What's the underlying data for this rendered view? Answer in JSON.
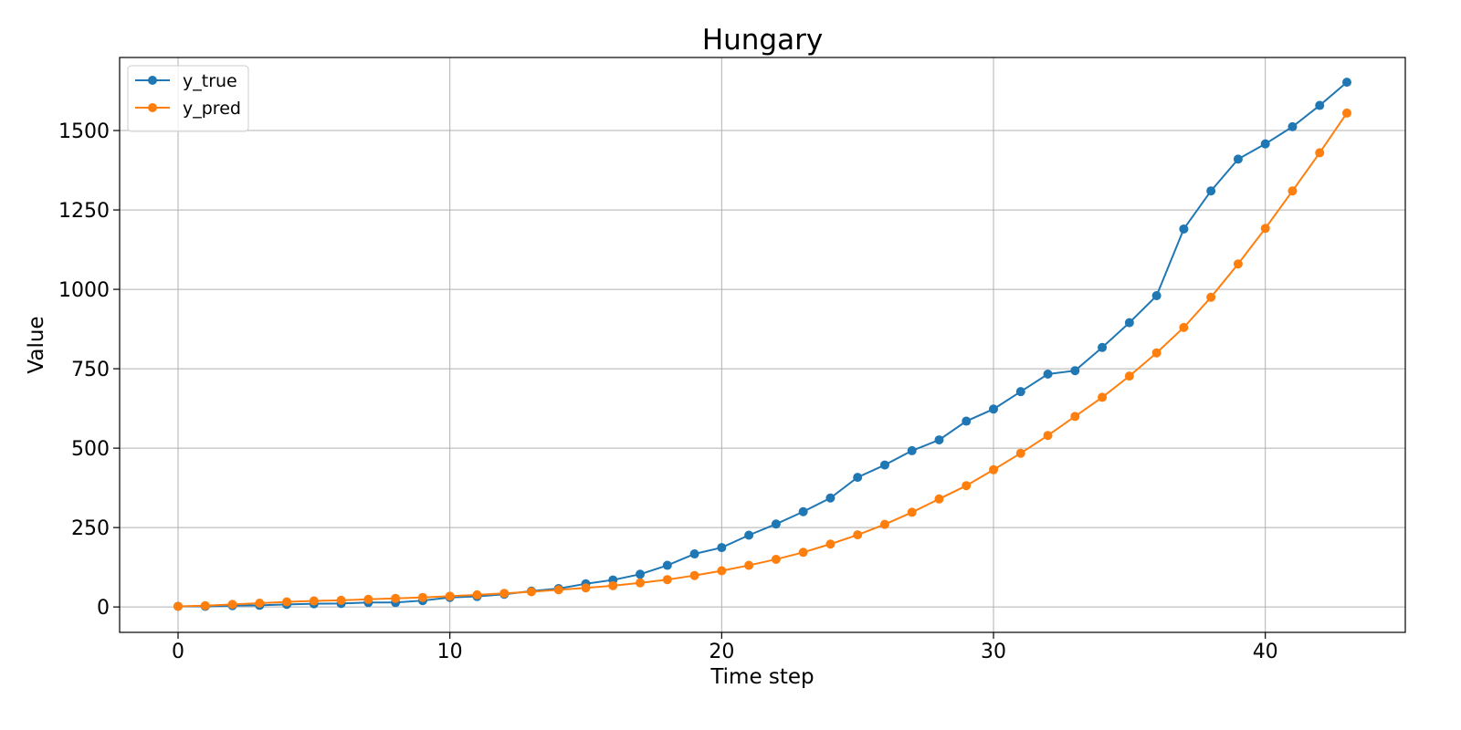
{
  "chart_data": {
    "type": "line",
    "title": "Hungary",
    "xlabel": "Time step",
    "ylabel": "Value",
    "xlim": [
      -2.15,
      45.15
    ],
    "ylim": [
      -80,
      1730
    ],
    "xticks": [
      0,
      10,
      20,
      30,
      40
    ],
    "yticks": [
      0,
      250,
      500,
      750,
      1000,
      1250,
      1500
    ],
    "grid": true,
    "legend_position": "top-left",
    "x": [
      0,
      1,
      2,
      3,
      4,
      5,
      6,
      7,
      8,
      9,
      10,
      11,
      12,
      13,
      14,
      15,
      16,
      17,
      18,
      19,
      20,
      21,
      22,
      23,
      24,
      25,
      26,
      27,
      28,
      29,
      30,
      31,
      32,
      33,
      34,
      35,
      36,
      37,
      38,
      39,
      40,
      41,
      42,
      43
    ],
    "series": [
      {
        "name": "y_true",
        "color": "#1f77b4",
        "values": [
          2,
          2,
          4,
          5,
          8,
          10,
          11,
          14,
          14,
          20,
          30,
          33,
          40,
          50,
          58,
          73,
          85,
          103,
          131,
          167,
          187,
          226,
          261,
          300,
          343,
          408,
          447,
          492,
          526,
          585,
          623,
          678,
          733,
          744,
          817,
          895,
          980,
          1190,
          1310,
          1410,
          1458,
          1512,
          1579,
          1652
        ]
      },
      {
        "name": "y_pred",
        "color": "#ff7f0e",
        "values": [
          2,
          4,
          8,
          12,
          16,
          19,
          21,
          24,
          27,
          30,
          34,
          38,
          43,
          48,
          54,
          60,
          67,
          76,
          86,
          99,
          114,
          131,
          150,
          172,
          198,
          227,
          260,
          298,
          340,
          382,
          432,
          484,
          540,
          600,
          660,
          727,
          800,
          880,
          975,
          1080,
          1192,
          1310,
          1430,
          1555
        ]
      }
    ]
  }
}
